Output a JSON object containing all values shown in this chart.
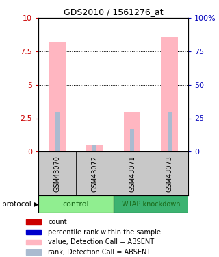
{
  "title": "GDS2010 / 1561276_at",
  "samples": [
    "GSM43070",
    "GSM43072",
    "GSM43071",
    "GSM43073"
  ],
  "bar_values": [
    8.2,
    0.5,
    3.0,
    8.6
  ],
  "rank_values": [
    30,
    5,
    17,
    30
  ],
  "bar_color_absent": "#FFB6C1",
  "rank_color_absent": "#AABBD0",
  "ylim_left": [
    0,
    10
  ],
  "ylim_right": [
    0,
    100
  ],
  "yticks_left": [
    0,
    2.5,
    5,
    7.5,
    10
  ],
  "ytick_labels_left": [
    "0",
    "2.5",
    "5",
    "7.5",
    "10"
  ],
  "yticks_right": [
    0,
    25,
    50,
    75,
    100
  ],
  "ytick_labels_right": [
    "0",
    "25",
    "50",
    "75",
    "100%"
  ],
  "left_axis_color": "#CC0000",
  "right_axis_color": "#0000BB",
  "dotted_lines": [
    2.5,
    5.0,
    7.5
  ],
  "bar_width": 0.45,
  "rank_bar_width": 0.12,
  "legend_items": [
    {
      "label": "count",
      "color": "#CC0000"
    },
    {
      "label": "percentile rank within the sample",
      "color": "#0000CC"
    },
    {
      "label": "value, Detection Call = ABSENT",
      "color": "#FFB6C1"
    },
    {
      "label": "rank, Detection Call = ABSENT",
      "color": "#AABBD0"
    }
  ],
  "light_green": "#90EE90",
  "dark_green": "#3CB371",
  "gray_bg": "#C8C8C8",
  "group_text_color": "#1a6b1a",
  "protocol_arrow": "protocol ▶"
}
